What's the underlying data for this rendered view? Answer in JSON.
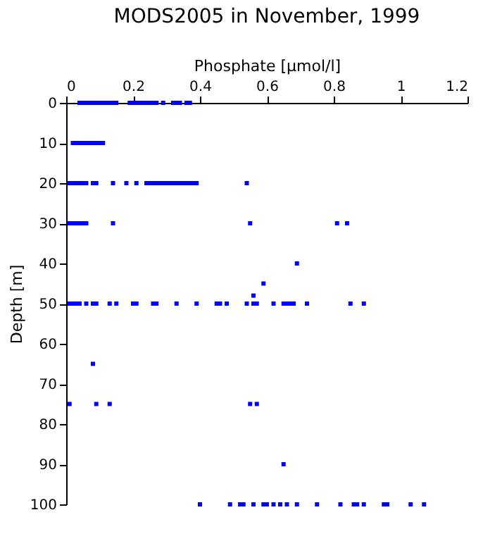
{
  "chart_data": {
    "type": "scatter",
    "title": "MODS2005 in November, 1999",
    "xlabel": "Phosphate [µmol/l]",
    "ylabel": "Depth [m]",
    "xlim": [
      0,
      1.2
    ],
    "xticks": [
      0,
      0.2,
      0.4,
      0.6,
      0.8,
      1,
      1.2
    ],
    "ylim": [
      100,
      0
    ],
    "yticks": [
      0,
      10,
      20,
      30,
      40,
      50,
      60,
      70,
      80,
      90,
      100
    ],
    "grid": false,
    "marker": "square",
    "series": [
      {
        "color": "#0000ff",
        "x": [
          0.04,
          0.05,
          0.06,
          0.07,
          0.08,
          0.09,
          0.1,
          0.11,
          0.12,
          0.13,
          0.14,
          0.15,
          0.19,
          0.2,
          0.21,
          0.22,
          0.23,
          0.24,
          0.25,
          0.26,
          0.27,
          0.29,
          0.32,
          0.33,
          0.34,
          0.36,
          0.37,
          0.02,
          0.03,
          0.04,
          0.05,
          0.06,
          0.07,
          0.08,
          0.09,
          0.1,
          0.11,
          0.01,
          0.02,
          0.03,
          0.04,
          0.05,
          0.06,
          0.08,
          0.09,
          0.14,
          0.18,
          0.21,
          0.24,
          0.25,
          0.26,
          0.27,
          0.28,
          0.29,
          0.3,
          0.31,
          0.32,
          0.33,
          0.34,
          0.35,
          0.36,
          0.37,
          0.38,
          0.39,
          0.54,
          0.01,
          0.02,
          0.03,
          0.04,
          0.05,
          0.06,
          0.14,
          0.55,
          0.81,
          0.84,
          0.69,
          0.59,
          0.56,
          0.01,
          0.02,
          0.03,
          0.04,
          0.06,
          0.08,
          0.09,
          0.13,
          0.15,
          0.2,
          0.21,
          0.26,
          0.27,
          0.33,
          0.39,
          0.45,
          0.46,
          0.48,
          0.54,
          0.56,
          0.57,
          0.62,
          0.65,
          0.66,
          0.67,
          0.68,
          0.72,
          0.85,
          0.89,
          0.08,
          0.01,
          0.09,
          0.13,
          0.55,
          0.57,
          0.65,
          0.4,
          0.49,
          0.52,
          0.53,
          0.56,
          0.59,
          0.6,
          0.62,
          0.64,
          0.66,
          0.69,
          0.75,
          0.82,
          0.86,
          0.87,
          0.89,
          0.95,
          0.96,
          1.03,
          1.07
        ],
        "values": [
          0,
          0,
          0,
          0,
          0,
          0,
          0,
          0,
          0,
          0,
          0,
          0,
          0,
          0,
          0,
          0,
          0,
          0,
          0,
          0,
          0,
          0,
          0,
          0,
          0,
          0,
          0,
          10,
          10,
          10,
          10,
          10,
          10,
          10,
          10,
          10,
          10,
          20,
          20,
          20,
          20,
          20,
          20,
          20,
          20,
          20,
          20,
          20,
          20,
          20,
          20,
          20,
          20,
          20,
          20,
          20,
          20,
          20,
          20,
          20,
          20,
          20,
          20,
          20,
          20,
          30,
          30,
          30,
          30,
          30,
          30,
          30,
          30,
          30,
          30,
          40,
          45,
          48,
          50,
          50,
          50,
          50,
          50,
          50,
          50,
          50,
          50,
          50,
          50,
          50,
          50,
          50,
          50,
          50,
          50,
          50,
          50,
          50,
          50,
          50,
          50,
          50,
          50,
          50,
          50,
          50,
          50,
          65,
          75,
          75,
          75,
          75,
          75,
          90,
          100,
          100,
          100,
          100,
          100,
          100,
          100,
          100,
          100,
          100,
          100,
          100,
          100,
          100,
          100,
          100,
          100,
          100,
          100,
          100
        ]
      }
    ]
  }
}
